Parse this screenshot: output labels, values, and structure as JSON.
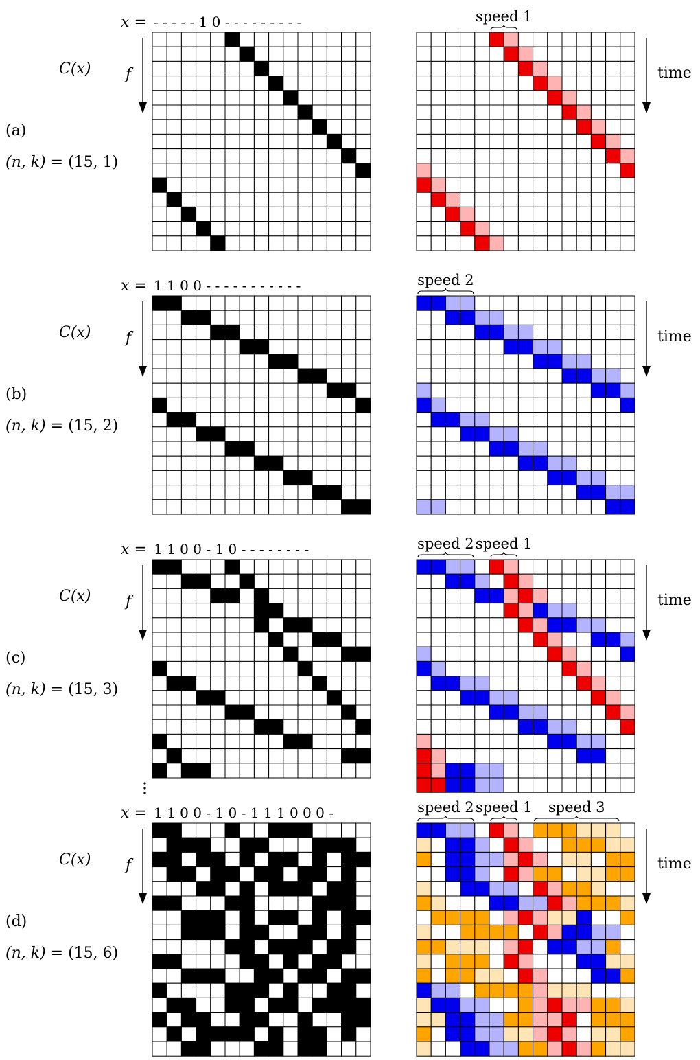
{
  "panels": [
    {
      "id": "a",
      "label": "(a)",
      "nk_prefix": "(n, k) = ",
      "nk_value": "(15, 1)",
      "x_prefix": "x =",
      "x_seq": "- - - - - 1 0 - - - - - - - - -",
      "cx_label": "C(x)",
      "f_label": "f",
      "time_label": "time",
      "black_rows": [
        [
          0,
          0,
          0,
          0,
          0,
          1,
          0,
          0,
          0,
          0,
          0,
          0,
          0,
          0,
          0
        ],
        [
          0,
          0,
          0,
          0,
          0,
          0,
          1,
          0,
          0,
          0,
          0,
          0,
          0,
          0,
          0
        ],
        [
          0,
          0,
          0,
          0,
          0,
          0,
          0,
          1,
          0,
          0,
          0,
          0,
          0,
          0,
          0
        ],
        [
          0,
          0,
          0,
          0,
          0,
          0,
          0,
          0,
          1,
          0,
          0,
          0,
          0,
          0,
          0
        ],
        [
          0,
          0,
          0,
          0,
          0,
          0,
          0,
          0,
          0,
          1,
          0,
          0,
          0,
          0,
          0
        ],
        [
          0,
          0,
          0,
          0,
          0,
          0,
          0,
          0,
          0,
          0,
          1,
          0,
          0,
          0,
          0
        ],
        [
          0,
          0,
          0,
          0,
          0,
          0,
          0,
          0,
          0,
          0,
          0,
          1,
          0,
          0,
          0
        ],
        [
          0,
          0,
          0,
          0,
          0,
          0,
          0,
          0,
          0,
          0,
          0,
          0,
          1,
          0,
          0
        ],
        [
          0,
          0,
          0,
          0,
          0,
          0,
          0,
          0,
          0,
          0,
          0,
          0,
          0,
          1,
          0
        ],
        [
          0,
          0,
          0,
          0,
          0,
          0,
          0,
          0,
          0,
          0,
          0,
          0,
          0,
          0,
          1
        ],
        [
          1,
          0,
          0,
          0,
          0,
          0,
          0,
          0,
          0,
          0,
          0,
          0,
          0,
          0,
          0
        ],
        [
          0,
          1,
          0,
          0,
          0,
          0,
          0,
          0,
          0,
          0,
          0,
          0,
          0,
          0,
          0
        ],
        [
          0,
          0,
          1,
          0,
          0,
          0,
          0,
          0,
          0,
          0,
          0,
          0,
          0,
          0,
          0
        ],
        [
          0,
          0,
          0,
          1,
          0,
          0,
          0,
          0,
          0,
          0,
          0,
          0,
          0,
          0,
          0
        ],
        [
          0,
          0,
          0,
          0,
          1,
          0,
          0,
          0,
          0,
          0,
          0,
          0,
          0,
          0,
          0
        ]
      ],
      "color_rows": [
        ".....rp........",
        "......rp.......",
        ".......rp......",
        "........rp.....",
        ".........rp....",
        "..........rp...",
        "...........rp..",
        "............rp.",
        ".............rp",
        "p.............r",
        "rp.............",
        ".rp............",
        "..rp...........",
        "...rp..........",
        "....rp........."
      ],
      "braces": [
        {
          "label": "speed 1",
          "start": 5,
          "end": 6
        }
      ],
      "ellipsis": false
    },
    {
      "id": "b",
      "label": "(b)",
      "nk_prefix": "(n, k) = ",
      "nk_value": "(15, 2)",
      "x_prefix": "x =",
      "x_seq": "1 1 0 0 - - - - - - - - - - -",
      "cx_label": "C(x)",
      "f_label": "f",
      "time_label": "time",
      "black_rows": [
        [
          1,
          1,
          0,
          0,
          0,
          0,
          0,
          0,
          0,
          0,
          0,
          0,
          0,
          0,
          0
        ],
        [
          0,
          0,
          1,
          1,
          0,
          0,
          0,
          0,
          0,
          0,
          0,
          0,
          0,
          0,
          0
        ],
        [
          0,
          0,
          0,
          0,
          1,
          1,
          0,
          0,
          0,
          0,
          0,
          0,
          0,
          0,
          0
        ],
        [
          0,
          0,
          0,
          0,
          0,
          0,
          1,
          1,
          0,
          0,
          0,
          0,
          0,
          0,
          0
        ],
        [
          0,
          0,
          0,
          0,
          0,
          0,
          0,
          0,
          1,
          1,
          0,
          0,
          0,
          0,
          0
        ],
        [
          0,
          0,
          0,
          0,
          0,
          0,
          0,
          0,
          0,
          0,
          1,
          1,
          0,
          0,
          0
        ],
        [
          0,
          0,
          0,
          0,
          0,
          0,
          0,
          0,
          0,
          0,
          0,
          0,
          1,
          1,
          0
        ],
        [
          1,
          0,
          0,
          0,
          0,
          0,
          0,
          0,
          0,
          0,
          0,
          0,
          0,
          0,
          1
        ],
        [
          0,
          1,
          1,
          0,
          0,
          0,
          0,
          0,
          0,
          0,
          0,
          0,
          0,
          0,
          0
        ],
        [
          0,
          0,
          0,
          1,
          1,
          0,
          0,
          0,
          0,
          0,
          0,
          0,
          0,
          0,
          0
        ],
        [
          0,
          0,
          0,
          0,
          0,
          1,
          1,
          0,
          0,
          0,
          0,
          0,
          0,
          0,
          0
        ],
        [
          0,
          0,
          0,
          0,
          0,
          0,
          0,
          1,
          1,
          0,
          0,
          0,
          0,
          0,
          0
        ],
        [
          0,
          0,
          0,
          0,
          0,
          0,
          0,
          0,
          0,
          1,
          1,
          0,
          0,
          0,
          0
        ],
        [
          0,
          0,
          0,
          0,
          0,
          0,
          0,
          0,
          0,
          0,
          0,
          1,
          1,
          0,
          0
        ],
        [
          0,
          0,
          0,
          0,
          0,
          0,
          0,
          0,
          0,
          0,
          0,
          0,
          0,
          1,
          1
        ]
      ],
      "color_rows": [
        "bbll...........",
        "..bbll.........",
        "....bbll.......",
        "......bbll.....",
        "........bbll...",
        "..........bbll.",
        "l...........bbl",
        "bl............b",
        ".bbll..........",
        "...bbll........",
        ".....bbll......",
        ".......bbll....",
        ".........bbll..",
        "...........bbll",
        "ll...........bb"
      ],
      "braces": [
        {
          "label": "speed 2",
          "start": 0,
          "end": 3
        }
      ],
      "ellipsis": false
    },
    {
      "id": "c",
      "label": "(c)",
      "nk_prefix": "(n, k) = ",
      "nk_value": "(15, 3)",
      "x_prefix": "x =",
      "x_seq": "1 1 0 0 - 1 0 - - - - - - - -",
      "cx_label": "C(x)",
      "f_label": "f",
      "time_label": "time",
      "black_rows": [
        [
          1,
          1,
          0,
          0,
          0,
          1,
          0,
          0,
          0,
          0,
          0,
          0,
          0,
          0,
          0
        ],
        [
          0,
          0,
          1,
          1,
          0,
          0,
          1,
          0,
          0,
          0,
          0,
          0,
          0,
          0,
          0
        ],
        [
          0,
          0,
          0,
          0,
          1,
          1,
          0,
          1,
          0,
          0,
          0,
          0,
          0,
          0,
          0
        ],
        [
          0,
          0,
          0,
          0,
          0,
          0,
          0,
          1,
          1,
          0,
          0,
          0,
          0,
          0,
          0
        ],
        [
          0,
          0,
          0,
          0,
          0,
          0,
          0,
          1,
          0,
          1,
          1,
          0,
          0,
          0,
          0
        ],
        [
          0,
          0,
          0,
          0,
          0,
          0,
          0,
          0,
          1,
          0,
          0,
          1,
          1,
          0,
          0
        ],
        [
          0,
          0,
          0,
          0,
          0,
          0,
          0,
          0,
          0,
          1,
          0,
          0,
          0,
          1,
          1
        ],
        [
          1,
          0,
          0,
          0,
          0,
          0,
          0,
          0,
          0,
          0,
          1,
          0,
          0,
          0,
          0
        ],
        [
          0,
          1,
          1,
          0,
          0,
          0,
          0,
          0,
          0,
          0,
          0,
          1,
          0,
          0,
          0
        ],
        [
          0,
          0,
          0,
          1,
          1,
          0,
          0,
          0,
          0,
          0,
          0,
          0,
          1,
          0,
          0
        ],
        [
          0,
          0,
          0,
          0,
          0,
          1,
          1,
          0,
          0,
          0,
          0,
          0,
          0,
          1,
          0
        ],
        [
          0,
          0,
          0,
          0,
          0,
          0,
          0,
          1,
          1,
          0,
          0,
          0,
          0,
          0,
          1
        ],
        [
          1,
          0,
          0,
          0,
          0,
          0,
          0,
          0,
          0,
          1,
          1,
          0,
          0,
          0,
          0
        ],
        [
          0,
          1,
          0,
          0,
          0,
          0,
          0,
          0,
          0,
          0,
          0,
          0,
          0,
          1,
          1
        ],
        [
          1,
          0,
          1,
          1,
          0,
          0,
          0,
          0,
          0,
          0,
          0,
          0,
          0,
          0,
          0
        ]
      ],
      "color_rows": [
        "bbll.rp........",
        "..bbl.rp.......",
        "....bbprp......",
        "......rpbll....",
        ".......rpbbll..",
        "........rp..bbl",
        "l........rp...b",
        "bl........rp...",
        ".bbll......rp..",
        "...bbll.....rp.",
        ".....bbll....rp",
        ".......bbll...r",
        "p........bbll..",
        "rp.........bb..",
        "rpbbll.........",
        "rrbbll........."
      ],
      "braces": [
        {
          "label": "speed 2",
          "start": 0,
          "end": 3
        },
        {
          "label": "speed 1",
          "start": 5,
          "end": 6
        }
      ],
      "ellipsis": true
    },
    {
      "id": "d",
      "label": "(d)",
      "nk_prefix": "(n, k) = ",
      "nk_value": "(15, 6)",
      "x_prefix": "x =",
      "x_seq": "1 1 0 0 - 1 0 - 1 1 1 0 0 0 -",
      "cx_label": "C(x)",
      "f_label": "f",
      "time_label": "time",
      "black_rows": [
        [
          1,
          1,
          0,
          0,
          0,
          1,
          0,
          0,
          1,
          1,
          1,
          0,
          0,
          0,
          0
        ],
        [
          0,
          1,
          1,
          1,
          0,
          0,
          1,
          1,
          0,
          0,
          0,
          1,
          1,
          1,
          0
        ],
        [
          1,
          1,
          0,
          1,
          1,
          0,
          1,
          0,
          1,
          1,
          0,
          1,
          0,
          1,
          1
        ],
        [
          0,
          1,
          1,
          0,
          1,
          1,
          0,
          1,
          1,
          0,
          1,
          1,
          0,
          1,
          0
        ],
        [
          0,
          0,
          0,
          1,
          1,
          0,
          1,
          0,
          1,
          1,
          1,
          0,
          1,
          1,
          0
        ],
        [
          1,
          1,
          0,
          0,
          0,
          1,
          1,
          0,
          0,
          0,
          0,
          1,
          1,
          1,
          0
        ],
        [
          0,
          0,
          1,
          1,
          1,
          0,
          1,
          0,
          1,
          1,
          0,
          1,
          0,
          1,
          1
        ],
        [
          0,
          0,
          1,
          1,
          1,
          0,
          1,
          1,
          0,
          0,
          1,
          1,
          0,
          1,
          0
        ],
        [
          0,
          0,
          0,
          0,
          0,
          1,
          1,
          0,
          1,
          1,
          1,
          0,
          1,
          1,
          0
        ],
        [
          1,
          1,
          0,
          0,
          0,
          0,
          1,
          1,
          0,
          1,
          0,
          1,
          1,
          0,
          0
        ],
        [
          0,
          0,
          1,
          1,
          1,
          0,
          0,
          1,
          1,
          0,
          1,
          1,
          0,
          1,
          1
        ],
        [
          1,
          0,
          0,
          0,
          0,
          1,
          1,
          1,
          0,
          1,
          0,
          0,
          1,
          1,
          0
        ],
        [
          0,
          1,
          1,
          0,
          0,
          1,
          1,
          0,
          1,
          1,
          0,
          1,
          1,
          1,
          1
        ],
        [
          1,
          0,
          1,
          1,
          0,
          0,
          1,
          1,
          0,
          0,
          1,
          0,
          0,
          1,
          1
        ],
        [
          0,
          1,
          0,
          1,
          1,
          1,
          1,
          0,
          1,
          0,
          1,
          1,
          0,
          1,
          0
        ],
        [
          0,
          0,
          1,
          1,
          0,
          0,
          0,
          1,
          1,
          0,
          1,
          1,
          0,
          0,
          0
        ]
      ],
      "color_rows": [
        "bbll.rp.oooyyy.",
        "y.bbl.rp..oooyy",
        "o.bbllprp.yy.oo",
        "..bbl.rpoo.yyoo",
        "y..bbll.rpooy..",
        "oy...bbllrpoooy",
        ".oooo.prpyyb..o",
        "y..oooo.rpbbll.",
        "ooyyy.pr.bbllo.",
        "y.ooo.rp...bbyy",
        "o.ooyy.rp...bbo",
        "bll.oooopyyy...",
        "ybbll..oprppooyy",
        "yybbllooppr.ooo",
        "o.bbllyyprp.yyo",
        "y..bbllooprpoyy"
      ],
      "braces": [
        {
          "label": "speed 2",
          "start": 0,
          "end": 3
        },
        {
          "label": "speed 1",
          "start": 5,
          "end": 6
        },
        {
          "label": "speed 3",
          "start": 8,
          "end": 13
        }
      ],
      "ellipsis": true
    }
  ],
  "color_legend": {
    "r": "#ee0000",
    "p": "#ffb3b3",
    "b": "#0000ee",
    "l": "#b3b3ff",
    "o": "#ffa500",
    "y": "#ffe4b5",
    ".": "#ffffff"
  }
}
